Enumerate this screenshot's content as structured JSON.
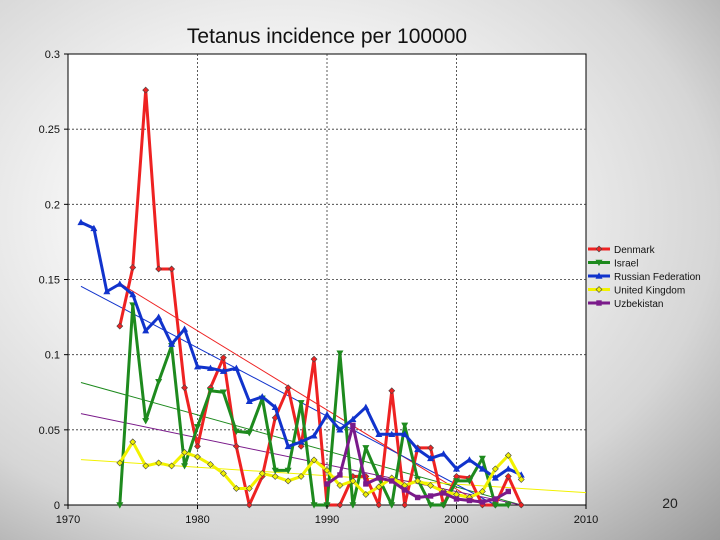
{
  "page_number": "20",
  "chart_data": {
    "type": "line",
    "title": "Tetanus incidence per 100000",
    "xlabel": "",
    "ylabel": "",
    "xlim": [
      1970,
      2010
    ],
    "ylim": [
      0,
      0.3
    ],
    "x_ticks": [
      "1970",
      "1980",
      "1990",
      "2000",
      "2010"
    ],
    "y_ticks": [
      "0",
      "0.05",
      "0.1",
      "0.15",
      "0.2",
      "0.25",
      "0.3"
    ],
    "grid": true,
    "legend_position": "right",
    "series": [
      {
        "name": "Denmark",
        "color": "#ee2222",
        "marker": "diamond",
        "x": [
          1974,
          1975,
          1976,
          1977,
          1978,
          1979,
          1980,
          1981,
          1982,
          1983,
          1984,
          1985,
          1986,
          1987,
          1988,
          1989,
          1990,
          1991,
          1992,
          1993,
          1994,
          1995,
          1996,
          1997,
          1998,
          1999,
          2000,
          2001,
          2002,
          2003,
          2004,
          2005
        ],
        "y": [
          0.119,
          0.158,
          0.276,
          0.157,
          0.157,
          0.078,
          0.039,
          0.078,
          0.098,
          0.039,
          0.0,
          0.019,
          0.058,
          0.078,
          0.039,
          0.097,
          0.0,
          0.0,
          0.019,
          0.019,
          0.0,
          0.076,
          0.0,
          0.038,
          0.038,
          0.0,
          0.019,
          0.018,
          0.0,
          0.0,
          0.019,
          0.0
        ],
        "trend": [
          [
            1974,
            0.1475
          ],
          [
            2002,
            0.0
          ]
        ]
      },
      {
        "name": "Israel",
        "color": "#1e8a1e",
        "marker": "triangle-down",
        "x": [
          1974,
          1975,
          1976,
          1977,
          1978,
          1979,
          1980,
          1981,
          1982,
          1983,
          1984,
          1985,
          1986,
          1987,
          1988,
          1989,
          1990,
          1991,
          1992,
          1993,
          1994,
          1995,
          1996,
          1997,
          1998,
          1999,
          2000,
          2001,
          2002,
          2003,
          2004
        ],
        "y": [
          0.0,
          0.133,
          0.056,
          0.082,
          0.106,
          0.026,
          0.052,
          0.076,
          0.075,
          0.049,
          0.048,
          0.071,
          0.023,
          0.023,
          0.068,
          0.0,
          0.0,
          0.101,
          0.0,
          0.038,
          0.018,
          0.0,
          0.053,
          0.017,
          0.0,
          0.0,
          0.016,
          0.016,
          0.031,
          0.0,
          0.0
        ],
        "trend": [
          [
            1971,
            0.0815
          ],
          [
            2005,
            0.0
          ]
        ]
      },
      {
        "name": "Russian Federation",
        "color": "#1133cc",
        "marker": "triangle-up",
        "x": [
          1971,
          1972,
          1973,
          1974,
          1975,
          1976,
          1977,
          1978,
          1979,
          1980,
          1981,
          1982,
          1983,
          1984,
          1985,
          1986,
          1987,
          1988,
          1989,
          1990,
          1991,
          1992,
          1993,
          1994,
          1995,
          1996,
          1997,
          1998,
          1999,
          2000,
          2001,
          2002,
          2003,
          2004,
          2005
        ],
        "y": [
          0.188,
          0.184,
          0.142,
          0.147,
          0.14,
          0.116,
          0.125,
          0.107,
          0.117,
          0.092,
          0.091,
          0.089,
          0.091,
          0.069,
          0.072,
          0.065,
          0.039,
          0.042,
          0.046,
          0.06,
          0.05,
          0.057,
          0.065,
          0.047,
          0.047,
          0.047,
          0.037,
          0.031,
          0.034,
          0.024,
          0.03,
          0.024,
          0.018,
          0.024,
          0.02
        ],
        "trend": [
          [
            1971,
            0.1455
          ],
          [
            2003,
            0.0
          ]
        ]
      },
      {
        "name": "United Kingdom",
        "color": "#f2f200",
        "marker": "diamond",
        "x": [
          1974,
          1975,
          1976,
          1977,
          1978,
          1979,
          1980,
          1981,
          1982,
          1983,
          1984,
          1985,
          1986,
          1987,
          1988,
          1989,
          1990,
          1991,
          1992,
          1993,
          1994,
          1995,
          1996,
          1997,
          1998,
          1999,
          2000,
          2001,
          2002,
          2003,
          2004,
          2005
        ],
        "y": [
          0.028,
          0.042,
          0.026,
          0.028,
          0.026,
          0.035,
          0.032,
          0.027,
          0.021,
          0.011,
          0.011,
          0.021,
          0.019,
          0.016,
          0.019,
          0.03,
          0.023,
          0.013,
          0.016,
          0.007,
          0.012,
          0.018,
          0.013,
          0.016,
          0.013,
          0.009,
          0.007,
          0.005,
          0.009,
          0.024,
          0.033,
          0.017
        ],
        "trend": [
          [
            1971,
            0.0302
          ],
          [
            2010,
            0.0082
          ]
        ]
      },
      {
        "name": "Uzbekistan",
        "color": "#7a1a8a",
        "marker": "square",
        "x": [
          1990,
          1991,
          1992,
          1993,
          1994,
          1995,
          1996,
          1997,
          1998,
          1999,
          2000,
          2001,
          2002,
          2003,
          2004
        ],
        "y": [
          0.014,
          0.02,
          0.053,
          0.014,
          0.018,
          0.016,
          0.01,
          0.005,
          0.006,
          0.008,
          0.004,
          0.003,
          0.002,
          0.004,
          0.009
        ],
        "trend": [
          [
            1971,
            0.0608
          ],
          [
            2005,
            0.0
          ]
        ]
      }
    ]
  }
}
